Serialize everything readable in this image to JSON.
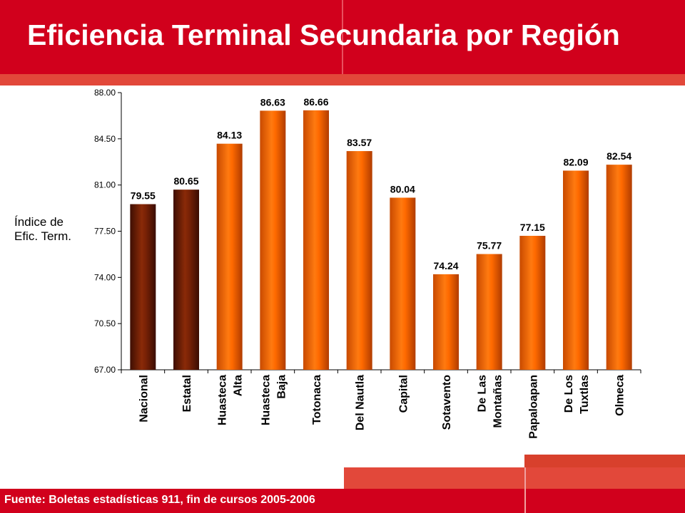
{
  "title": "Eficiencia Terminal Secundaria por Región",
  "footer": "Fuente: Boletas estadísticas 911, fin de cursos 2005-2006",
  "chart_data": {
    "type": "bar",
    "ylabel_lines": [
      "Índice de",
      "Efic. Term."
    ],
    "ylim": [
      67.0,
      88.0
    ],
    "yticks": [
      "67.00",
      "70.50",
      "74.00",
      "77.50",
      "81.00",
      "84.50",
      "88.00"
    ],
    "categories": [
      [
        "Nacional"
      ],
      [
        "Estatal"
      ],
      [
        "Huasteca",
        "Alta"
      ],
      [
        "Huasteca",
        "Baja"
      ],
      [
        "Totonaca"
      ],
      [
        "Del Nautla"
      ],
      [
        "Capital"
      ],
      [
        "Sotavento"
      ],
      [
        "De Las",
        "Montañas"
      ],
      [
        "Papaloapan"
      ],
      [
        "De Los",
        "Tuxtlas"
      ],
      [
        "Olmeca"
      ]
    ],
    "values": [
      79.55,
      80.65,
      84.13,
      86.63,
      86.66,
      83.57,
      80.04,
      74.24,
      75.77,
      77.15,
      82.09,
      82.54
    ],
    "value_labels": [
      "79.55",
      "80.65",
      "84.13",
      "86.63",
      "86.66",
      "83.57",
      "80.04",
      "74.24",
      "75.77",
      "77.15",
      "82.09",
      "82.54"
    ],
    "colors": {
      "highlight": "#6a1a04",
      "regular": "#ff6a00"
    },
    "highlight_count": 2
  }
}
